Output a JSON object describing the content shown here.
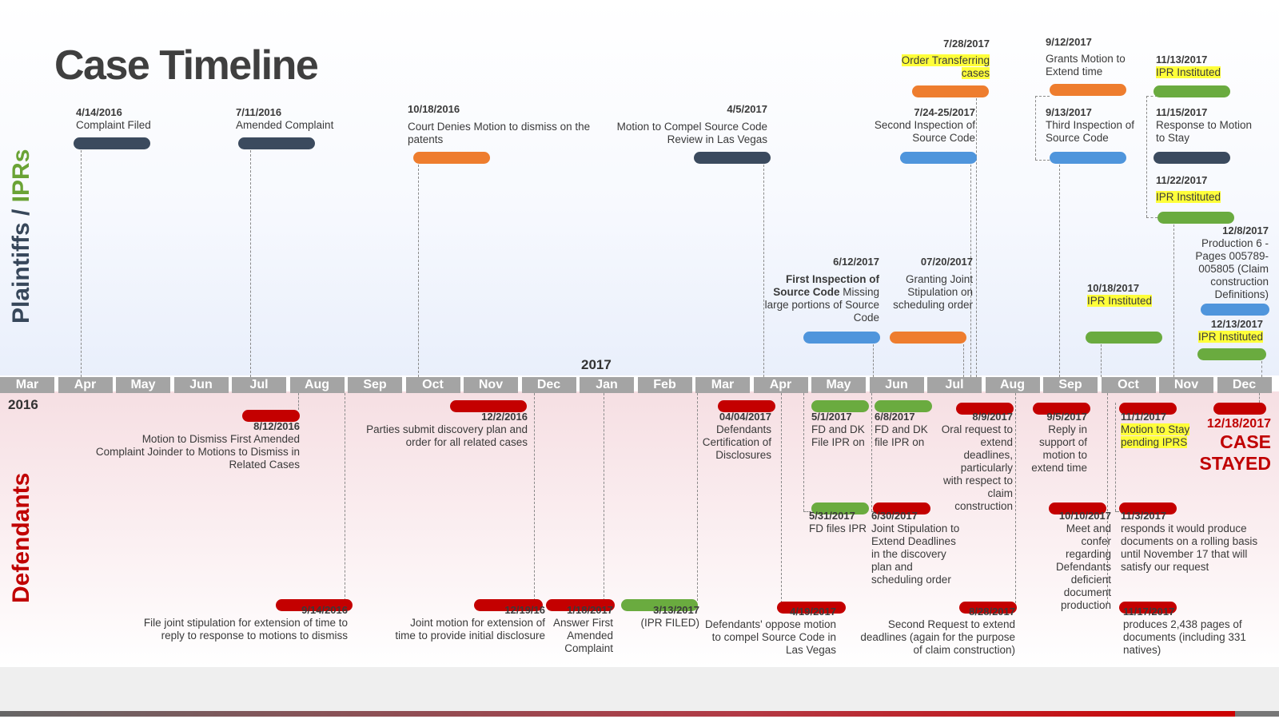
{
  "title": "Case Timeline",
  "side_labels": {
    "top_a": "Plaintiffs / ",
    "top_b": "IPRs",
    "bottom": "Defendants"
  },
  "years": {
    "y2016": "2016",
    "y2017": "2017"
  },
  "months": [
    "Mar",
    "Apr",
    "May",
    "Jun",
    "Jul",
    "Aug",
    "Sep",
    "Oct",
    "Nov",
    "Dec",
    "Jan",
    "Feb",
    "Mar",
    "Apr",
    "May",
    "Jun",
    "Jul",
    "Aug",
    "Sep",
    "Oct",
    "Nov",
    "Dec"
  ],
  "colors": {
    "navy": "#3b4a5e",
    "orange": "#ee7d2e",
    "blue": "#4f95dc",
    "green": "#6aab3f",
    "red": "#c40000",
    "highlight": "#ffff3a"
  },
  "plaintiffs": [
    {
      "date": "4/14/2016",
      "text": "Complaint Filed",
      "color": "navy"
    },
    {
      "date": "7/11/2016",
      "text": "Amended Complaint",
      "color": "navy"
    },
    {
      "date": "10/18/2016",
      "text": "Court Denies Motion to dismiss on the patents",
      "color": "orange"
    },
    {
      "date": "4/5/2017",
      "text": "Motion to Compel Source Code Review in Las Vegas",
      "color": "navy"
    },
    {
      "date": "6/12/2017",
      "text_bold": "First Inspection of Source Code",
      "text": " Missing large portions of Source Code",
      "color": "blue"
    },
    {
      "date": "07/20/2017",
      "text": "Granting Joint Stipulation on scheduling order",
      "color": "orange"
    },
    {
      "date": "7/24-25/2017",
      "text": "Second Inspection of Source Code",
      "color": "blue"
    },
    {
      "date": "7/28/2017",
      "text": "Order Transferring cases",
      "color": "orange"
    },
    {
      "date": "9/12/2017",
      "text": "Grants Motion to Extend time",
      "color": "orange"
    },
    {
      "date": "9/13/2017",
      "text": "Third Inspection of Source Code",
      "color": "blue"
    },
    {
      "date": "10/18/2017",
      "text": "IPR Instituted",
      "color": "green"
    },
    {
      "date": "11/13/2017",
      "text": "IPR Instituted",
      "color": "green"
    },
    {
      "date": "11/15/2017",
      "text": "Response to Motion to Stay",
      "color": "navy"
    },
    {
      "date": "11/22/2017",
      "text": "IPR Instituted",
      "color": "green"
    },
    {
      "date": "12/8/2017",
      "text": "Production 6 - Pages 005789-005805 (Claim construction Definitions)",
      "color": "blue"
    },
    {
      "date": "12/13/2017",
      "text": "IPR Instituted",
      "color": "green"
    }
  ],
  "defendants": [
    {
      "date": "8/12/2016",
      "text": "Motion to Dismiss First Amended Complaint Joinder to Motions to Dismiss in Related Cases",
      "color": "red"
    },
    {
      "date": "9/14/2016",
      "text": "File joint stipulation for extension of time to reply to response to motions to dismiss",
      "color": "red"
    },
    {
      "date": "12/2/2016",
      "text": "Parties submit discovery plan and order for all related cases",
      "color": "red"
    },
    {
      "date": "12/19/16",
      "text": "Joint motion for extension of time to provide initial disclosure",
      "color": "red"
    },
    {
      "date": "1/18/2017",
      "text": "Answer First Amended Complaint",
      "color": "red"
    },
    {
      "date": "3/13/2017",
      "text": "(IPR FILED)",
      "color": "green"
    },
    {
      "date": "04/04/2017",
      "text": "Defendants Certification of Disclosures",
      "color": "red"
    },
    {
      "date": "4/19/2017",
      "text": "Defendants' oppose motion to compel Source Code in Las Vegas",
      "color": "red"
    },
    {
      "date": "5/1/2017",
      "text": "FD and DK File IPR on",
      "color": "green"
    },
    {
      "date": "5/31/2017",
      "text": "FD files IPR",
      "color": "green"
    },
    {
      "date": "6/8/2017",
      "text": "FD and DK file IPR on",
      "color": "green"
    },
    {
      "date": "6/30/2017",
      "text": "Joint Stipulation to Extend Deadlines in the discovery plan and scheduling order",
      "color": "red"
    },
    {
      "date": "8/9/2017",
      "text": "Oral request to extend deadlines, particularly with respect to claim construction",
      "color": "red"
    },
    {
      "date": "8/28/2017",
      "text": "Second Request to extend deadlines (again for the purpose of claim construction)",
      "color": "red"
    },
    {
      "date": "9/5/2017",
      "text": "Reply in support of motion to extend time",
      "color": "red"
    },
    {
      "date": "10/10/2017",
      "text": "Meet and confer regarding Defendants deficient document production",
      "color": "red"
    },
    {
      "date": "11/1/2017",
      "text": "Motion to Stay pending IPRS",
      "color": "red"
    },
    {
      "date": "11/3/2017",
      "text": "responds it would produce documents on a rolling basis until November 17 that will satisfy our request",
      "color": "red"
    },
    {
      "date": "11/17/2017",
      "text": "produces 2,438 pages of documents (including 331 natives)",
      "color": "red"
    },
    {
      "date": "12/18/2017",
      "text_a": "CASE",
      "text_b": "STAYED",
      "color": "red"
    }
  ]
}
